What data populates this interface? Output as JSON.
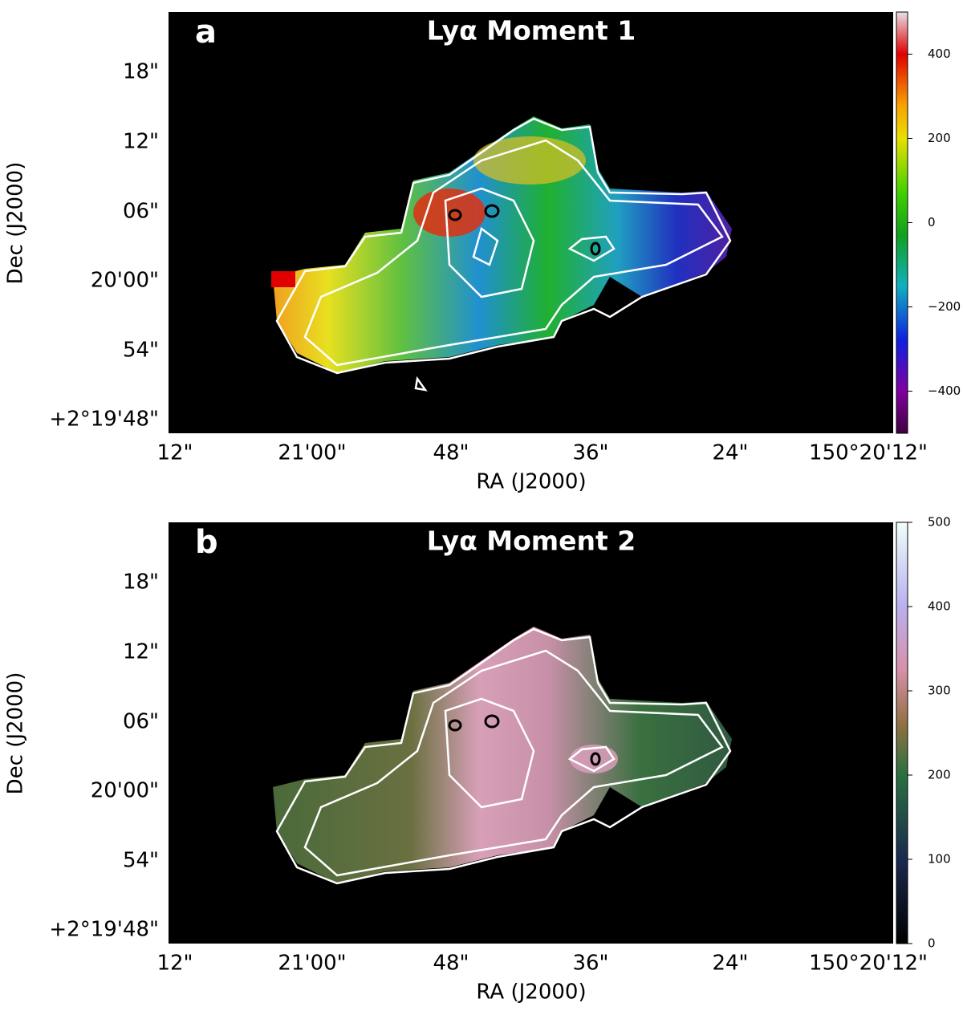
{
  "chart_data": [
    {
      "type": "image",
      "panel_label": "a",
      "title": "Lyα Moment 1",
      "xlabel": "RA (J2000)",
      "ylabel": "Dec (J2000)",
      "xtick_labels": [
        "12\"",
        "21'00\"",
        "48\"",
        "36\"",
        "24\"",
        "150°20'12\""
      ],
      "ytick_labels": [
        "18\"",
        "12\"",
        "06\"",
        "20'00\"",
        "54\"",
        "+2°19'48\""
      ],
      "colorbar": {
        "lim": [
          -500,
          500
        ],
        "ticks": [
          400,
          200,
          0,
          {
            "value": -200,
            "label": "−200"
          },
          {
            "value": -400,
            "label": "−400"
          }
        ]
      }
    },
    {
      "type": "image",
      "panel_label": "b",
      "title": "Lyα Moment 2",
      "xlabel": "RA (J2000)",
      "ylabel": "Dec (J2000)",
      "xtick_labels": [
        "12\"",
        "21'00\"",
        "48\"",
        "36\"",
        "24\"",
        "150°20'12\""
      ],
      "ytick_labels": [
        "18\"",
        "12\"",
        "06\"",
        "20'00\"",
        "54\"",
        "+2°19'48\""
      ],
      "colorbar": {
        "lim": [
          0,
          500
        ],
        "ticks": [
          0,
          100,
          200,
          300,
          400,
          500
        ]
      }
    }
  ]
}
